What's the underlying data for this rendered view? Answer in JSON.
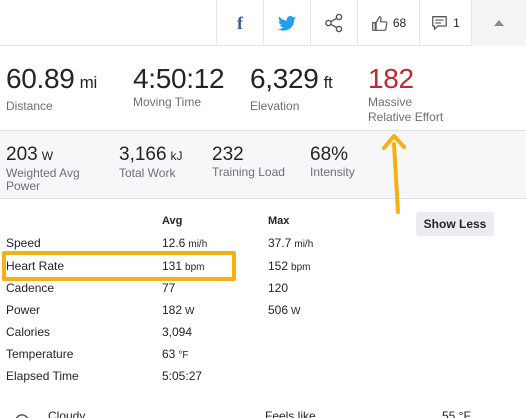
{
  "actions": {
    "facebook_icon": "facebook-icon",
    "twitter_icon": "twitter-icon",
    "share_icon": "share-icon",
    "kudos_count": "68",
    "comment_count": "1",
    "collapse_icon": "caret-up-icon"
  },
  "primary_stats": [
    {
      "value": "60.89",
      "unit": "mi",
      "label": "Distance"
    },
    {
      "value": "4:50:12",
      "unit": "",
      "label": "Moving Time"
    },
    {
      "value": "6,329",
      "unit": "ft",
      "label": "Elevation"
    },
    {
      "value": "182",
      "unit": "",
      "label_line1": "Massive",
      "label_line2": "Relative Effort"
    }
  ],
  "secondary_stats": [
    {
      "value": "203",
      "unit": "W",
      "label_line1": "Weighted Avg",
      "label_line2": "Power"
    },
    {
      "value": "3,166",
      "unit": "kJ",
      "label_line1": "Total Work"
    },
    {
      "value": "232",
      "unit": "",
      "label_line1": "Training Load"
    },
    {
      "value": "68%",
      "unit": "",
      "label_line1": "Intensity"
    }
  ],
  "table": {
    "headers": {
      "avg": "Avg",
      "max": "Max"
    },
    "rows": [
      {
        "name": "Speed",
        "avg": "12.6",
        "avg_unit": "mi/h",
        "max": "37.7",
        "max_unit": "mi/h"
      },
      {
        "name": "Heart Rate",
        "avg": "131",
        "avg_unit": "bpm",
        "max": "152",
        "max_unit": "bpm"
      },
      {
        "name": "Cadence",
        "avg": "77",
        "avg_unit": "",
        "max": "120",
        "max_unit": ""
      },
      {
        "name": "Power",
        "avg": "182",
        "avg_unit": "W",
        "max": "506",
        "max_unit": "W"
      },
      {
        "name": "Calories",
        "avg": "3,094",
        "avg_unit": "",
        "max": "",
        "max_unit": ""
      },
      {
        "name": "Temperature",
        "avg": "63",
        "avg_unit": "°F",
        "max": "",
        "max_unit": ""
      },
      {
        "name": "Elapsed Time",
        "avg": "5:05:27",
        "avg_unit": "",
        "max": "",
        "max_unit": ""
      }
    ]
  },
  "show_less_label": "Show Less",
  "weather": {
    "condition": "Cloudy",
    "feels_like_label": "Feels like",
    "feels_like_value": "55 °F"
  },
  "colors": {
    "effort_red": "#c0282f",
    "annotation_yellow": "#f5b014",
    "facebook_blue": "#3b5998",
    "twitter_blue": "#1da1f2"
  }
}
